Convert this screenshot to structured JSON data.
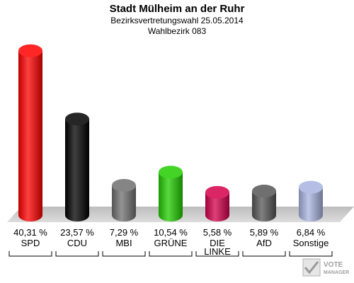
{
  "chart_data": {
    "type": "bar",
    "title": "Stadt Mülheim an der Ruhr",
    "subtitle": "Bezirksvertretungswahl 25.05.2014",
    "subtitle2": "Wahlbezirk 083",
    "categories": [
      "SPD",
      "CDU",
      "MBI",
      "GRÜNE",
      "DIE LINKE",
      "AfD",
      "Sonstige"
    ],
    "category_lines": [
      [
        "SPD"
      ],
      [
        "CDU"
      ],
      [
        "MBI"
      ],
      [
        "GRÜNE"
      ],
      [
        "DIE",
        "LINKE"
      ],
      [
        "AfD"
      ],
      [
        "Sonstige"
      ]
    ],
    "values": [
      40.31,
      23.57,
      7.29,
      10.54,
      5.58,
      5.89,
      6.84
    ],
    "value_labels": [
      "40,31 %",
      "23,57 %",
      "7,29 %",
      "10,54 %",
      "5,58 %",
      "5,89 %",
      "6,84 %"
    ],
    "colors": [
      "#ff0000",
      "#000000",
      "#707070",
      "#22cc00",
      "#d4004a",
      "#555555",
      "#a8b4e0"
    ],
    "ylim": [
      0,
      42
    ],
    "grid": false
  },
  "watermark": "VOTE MANAGER"
}
